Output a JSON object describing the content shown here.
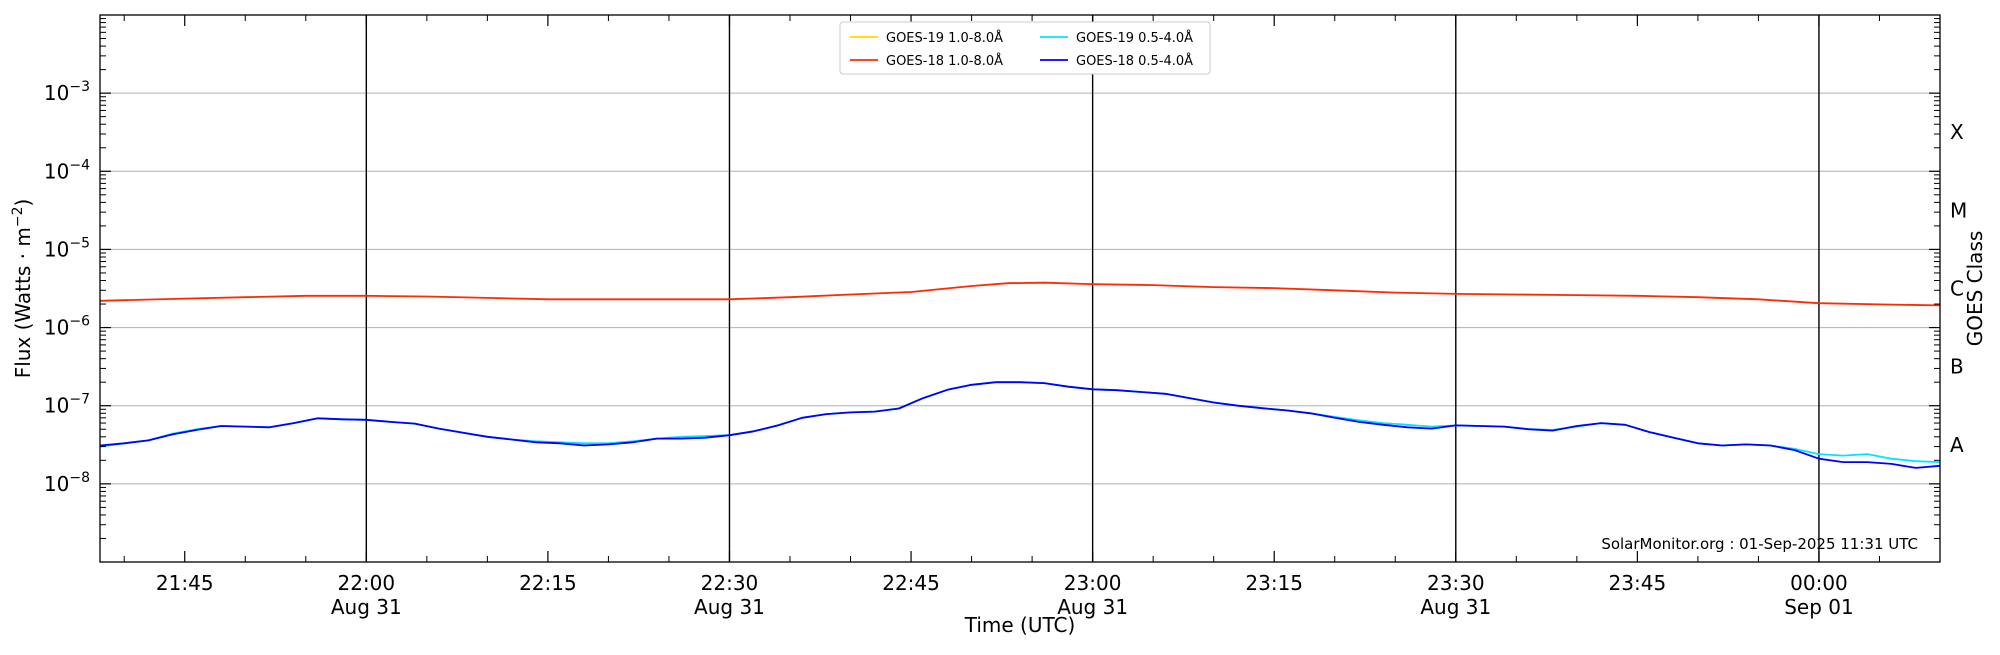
{
  "chart_data": {
    "type": "line",
    "title": "",
    "xlabel": "Time (UTC)",
    "ylabel": "Flux (Watts · m⁻²)",
    "y2label": "GOES Class",
    "yscale": "log",
    "ylim_exponent": [
      -9,
      -2
    ],
    "y_ticks": [
      {
        "exp": -8,
        "base": "10",
        "sup": "−8"
      },
      {
        "exp": -7,
        "base": "10",
        "sup": "−7"
      },
      {
        "exp": -6,
        "base": "10",
        "sup": "−6"
      },
      {
        "exp": -5,
        "base": "10",
        "sup": "−5"
      },
      {
        "exp": -4,
        "base": "10",
        "sup": "−4"
      },
      {
        "exp": -3,
        "base": "10",
        "sup": "−3"
      }
    ],
    "goes_classes": [
      {
        "label": "A",
        "exp": -7.5
      },
      {
        "label": "B",
        "exp": -6.5
      },
      {
        "label": "C",
        "exp": -5.5
      },
      {
        "label": "M",
        "exp": -4.5
      },
      {
        "label": "X",
        "exp": -3.5
      }
    ],
    "xlim": [
      "2025-08-31 21:38",
      "2025-09-01 00:10"
    ],
    "x_ticks": [
      {
        "time": "2025-08-31 21:45",
        "line1": "21:45",
        "line2": ""
      },
      {
        "time": "2025-08-31 22:00",
        "line1": "22:00",
        "line2": "Aug 31"
      },
      {
        "time": "2025-08-31 22:15",
        "line1": "22:15",
        "line2": ""
      },
      {
        "time": "2025-08-31 22:30",
        "line1": "22:30",
        "line2": "Aug 31"
      },
      {
        "time": "2025-08-31 22:45",
        "line1": "22:45",
        "line2": ""
      },
      {
        "time": "2025-08-31 23:00",
        "line1": "23:00",
        "line2": "Aug 31"
      },
      {
        "time": "2025-08-31 23:15",
        "line1": "23:15",
        "line2": ""
      },
      {
        "time": "2025-08-31 23:30",
        "line1": "23:30",
        "line2": "Aug 31"
      },
      {
        "time": "2025-08-31 23:45",
        "line1": "23:45",
        "line2": ""
      },
      {
        "time": "2025-09-01 00:00",
        "line1": "00:00",
        "line2": "Sep 01"
      }
    ],
    "vertical_lines": [
      "2025-08-31 22:00",
      "2025-08-31 22:30",
      "2025-08-31 23:00",
      "2025-08-31 23:30",
      "2025-09-01 00:00"
    ],
    "grid": true,
    "legend_position": "top-center",
    "legend": [
      {
        "name": "GOES-19 1.0-8.0Å",
        "color": "#ffd700"
      },
      {
        "name": "GOES-19 0.5-4.0Å",
        "color": "#00e5ff"
      },
      {
        "name": "GOES-18 1.0-8.0Å",
        "color": "#ff2a00"
      },
      {
        "name": "GOES-18 0.5-4.0Å",
        "color": "#0000ff"
      }
    ],
    "series": [
      {
        "name": "GOES-18 1.0-8.0Å",
        "color": "#ff2a00",
        "x": [
          "2025-08-31 21:38",
          "2025-08-31 21:45",
          "2025-08-31 21:50",
          "2025-08-31 21:55",
          "2025-08-31 22:00",
          "2025-08-31 22:05",
          "2025-08-31 22:10",
          "2025-08-31 22:15",
          "2025-08-31 22:20",
          "2025-08-31 22:25",
          "2025-08-31 22:30",
          "2025-08-31 22:35",
          "2025-08-31 22:40",
          "2025-08-31 22:45",
          "2025-08-31 22:50",
          "2025-08-31 22:53",
          "2025-08-31 22:56",
          "2025-08-31 23:00",
          "2025-08-31 23:05",
          "2025-08-31 23:10",
          "2025-08-31 23:15",
          "2025-08-31 23:20",
          "2025-08-31 23:25",
          "2025-08-31 23:30",
          "2025-08-31 23:35",
          "2025-08-31 23:40",
          "2025-08-31 23:45",
          "2025-08-31 23:50",
          "2025-08-31 23:55",
          "2025-09-01 00:00",
          "2025-09-01 00:05",
          "2025-09-01 00:10"
        ],
        "y": [
          2.2e-06,
          2.35e-06,
          2.45e-06,
          2.55e-06,
          2.55e-06,
          2.5e-06,
          2.4e-06,
          2.3e-06,
          2.3e-06,
          2.3e-06,
          2.3e-06,
          2.45e-06,
          2.65e-06,
          2.85e-06,
          3.4e-06,
          3.7e-06,
          3.75e-06,
          3.6e-06,
          3.5e-06,
          3.3e-06,
          3.2e-06,
          3e-06,
          2.8e-06,
          2.7e-06,
          2.65e-06,
          2.6e-06,
          2.55e-06,
          2.45e-06,
          2.3e-06,
          2.05e-06,
          1.98e-06,
          1.92e-06
        ]
      },
      {
        "name": "GOES-19 0.5-4.0Å",
        "color": "#00e5ff",
        "x": [
          "2025-08-31 21:38",
          "2025-08-31 21:40",
          "2025-08-31 21:42",
          "2025-08-31 21:44",
          "2025-08-31 21:46",
          "2025-08-31 21:48",
          "2025-08-31 21:50",
          "2025-08-31 21:52",
          "2025-08-31 21:54",
          "2025-08-31 21:56",
          "2025-08-31 21:58",
          "2025-08-31 22:00",
          "2025-08-31 22:02",
          "2025-08-31 22:04",
          "2025-08-31 22:06",
          "2025-08-31 22:08",
          "2025-08-31 22:10",
          "2025-08-31 22:12",
          "2025-08-31 22:14",
          "2025-08-31 22:16",
          "2025-08-31 22:18",
          "2025-08-31 22:20",
          "2025-08-31 22:22",
          "2025-08-31 22:24",
          "2025-08-31 22:26",
          "2025-08-31 22:28",
          "2025-08-31 22:30",
          "2025-08-31 22:32",
          "2025-08-31 22:34",
          "2025-08-31 22:36",
          "2025-08-31 22:38",
          "2025-08-31 22:40",
          "2025-08-31 22:42",
          "2025-08-31 22:44",
          "2025-08-31 22:46",
          "2025-08-31 22:48",
          "2025-08-31 22:50",
          "2025-08-31 22:52",
          "2025-08-31 22:54",
          "2025-08-31 22:56",
          "2025-08-31 22:58",
          "2025-08-31 23:00",
          "2025-08-31 23:02",
          "2025-08-31 23:04",
          "2025-08-31 23:06",
          "2025-08-31 23:08",
          "2025-08-31 23:10",
          "2025-08-31 23:12",
          "2025-08-31 23:14",
          "2025-08-31 23:16",
          "2025-08-31 23:18",
          "2025-08-31 23:20",
          "2025-08-31 23:22",
          "2025-08-31 23:24",
          "2025-08-31 23:26",
          "2025-08-31 23:28",
          "2025-08-31 23:30",
          "2025-08-31 23:32",
          "2025-08-31 23:34",
          "2025-08-31 23:36",
          "2025-08-31 23:38",
          "2025-08-31 23:40",
          "2025-08-31 23:42",
          "2025-08-31 23:44",
          "2025-08-31 23:46",
          "2025-08-31 23:48",
          "2025-08-31 23:50",
          "2025-08-31 23:52",
          "2025-08-31 23:54",
          "2025-08-31 23:56",
          "2025-08-31 23:58",
          "2025-09-01 00:00",
          "2025-09-01 00:02",
          "2025-09-01 00:04",
          "2025-09-01 00:06",
          "2025-09-01 00:08",
          "2025-09-01 00:10"
        ],
        "y": [
          3e-08,
          3.3e-08,
          3.6e-08,
          4.4e-08,
          5e-08,
          5.5e-08,
          5.4e-08,
          5.3e-08,
          6e-08,
          6.9e-08,
          6.7e-08,
          6.6e-08,
          6.2e-08,
          5.9e-08,
          5.1e-08,
          4.5e-08,
          4e-08,
          3.7e-08,
          3.5e-08,
          3.4e-08,
          3.3e-08,
          3.3e-08,
          3.5e-08,
          3.8e-08,
          4e-08,
          4.1e-08,
          4.2e-08,
          4.7e-08,
          5.6e-08,
          7e-08,
          7.8e-08,
          8.2e-08,
          8.4e-08,
          9.2e-08,
          1.25e-07,
          1.6e-07,
          1.85e-07,
          2e-07,
          2e-07,
          1.95e-07,
          1.75e-07,
          1.62e-07,
          1.58e-07,
          1.5e-07,
          1.42e-07,
          1.25e-07,
          1.1e-07,
          1e-07,
          9.3e-08,
          8.7e-08,
          8e-08,
          7.2e-08,
          6.5e-08,
          6e-08,
          5.7e-08,
          5.4e-08,
          5.6e-08,
          5.5e-08,
          5.4e-08,
          5e-08,
          4.9e-08,
          5.4e-08,
          6e-08,
          5.7e-08,
          4.6e-08,
          3.9e-08,
          3.3e-08,
          3.1e-08,
          3.2e-08,
          3.1e-08,
          2.8e-08,
          2.4e-08,
          2.3e-08,
          2.4e-08,
          2.1e-08,
          1.95e-08,
          1.9e-08
        ]
      },
      {
        "name": "GOES-18 0.5-4.0Å",
        "color": "#0000ff",
        "x": [
          "2025-08-31 21:38",
          "2025-08-31 21:40",
          "2025-08-31 21:42",
          "2025-08-31 21:44",
          "2025-08-31 21:46",
          "2025-08-31 21:48",
          "2025-08-31 21:50",
          "2025-08-31 21:52",
          "2025-08-31 21:54",
          "2025-08-31 21:56",
          "2025-08-31 21:58",
          "2025-08-31 22:00",
          "2025-08-31 22:02",
          "2025-08-31 22:04",
          "2025-08-31 22:06",
          "2025-08-31 22:08",
          "2025-08-31 22:10",
          "2025-08-31 22:12",
          "2025-08-31 22:14",
          "2025-08-31 22:16",
          "2025-08-31 22:18",
          "2025-08-31 22:20",
          "2025-08-31 22:22",
          "2025-08-31 22:24",
          "2025-08-31 22:26",
          "2025-08-31 22:28",
          "2025-08-31 22:30",
          "2025-08-31 22:32",
          "2025-08-31 22:34",
          "2025-08-31 22:36",
          "2025-08-31 22:38",
          "2025-08-31 22:40",
          "2025-08-31 22:42",
          "2025-08-31 22:44",
          "2025-08-31 22:46",
          "2025-08-31 22:48",
          "2025-08-31 22:50",
          "2025-08-31 22:52",
          "2025-08-31 22:54",
          "2025-08-31 22:56",
          "2025-08-31 22:58",
          "2025-08-31 23:00",
          "2025-08-31 23:02",
          "2025-08-31 23:04",
          "2025-08-31 23:06",
          "2025-08-31 23:08",
          "2025-08-31 23:10",
          "2025-08-31 23:12",
          "2025-08-31 23:14",
          "2025-08-31 23:16",
          "2025-08-31 23:18",
          "2025-08-31 23:20",
          "2025-08-31 23:22",
          "2025-08-31 23:24",
          "2025-08-31 23:26",
          "2025-08-31 23:28",
          "2025-08-31 23:30",
          "2025-08-31 23:32",
          "2025-08-31 23:34",
          "2025-08-31 23:36",
          "2025-08-31 23:38",
          "2025-08-31 23:40",
          "2025-08-31 23:42",
          "2025-08-31 23:44",
          "2025-08-31 23:46",
          "2025-08-31 23:48",
          "2025-08-31 23:50",
          "2025-08-31 23:52",
          "2025-08-31 23:54",
          "2025-08-31 23:56",
          "2025-08-31 23:58",
          "2025-09-01 00:00",
          "2025-09-01 00:02",
          "2025-09-01 00:04",
          "2025-09-01 00:06",
          "2025-09-01 00:08",
          "2025-09-01 00:10"
        ],
        "y": [
          3.1e-08,
          3.3e-08,
          3.6e-08,
          4.3e-08,
          4.9e-08,
          5.5e-08,
          5.4e-08,
          5.3e-08,
          6e-08,
          6.9e-08,
          6.7e-08,
          6.6e-08,
          6.2e-08,
          5.9e-08,
          5.1e-08,
          4.5e-08,
          4e-08,
          3.7e-08,
          3.4e-08,
          3.3e-08,
          3.1e-08,
          3.2e-08,
          3.4e-08,
          3.8e-08,
          3.8e-08,
          3.9e-08,
          4.2e-08,
          4.7e-08,
          5.6e-08,
          7e-08,
          7.8e-08,
          8.2e-08,
          8.4e-08,
          9.2e-08,
          1.25e-07,
          1.6e-07,
          1.85e-07,
          2e-07,
          2e-07,
          1.95e-07,
          1.75e-07,
          1.62e-07,
          1.58e-07,
          1.5e-07,
          1.42e-07,
          1.25e-07,
          1.1e-07,
          1e-07,
          9.3e-08,
          8.7e-08,
          8e-08,
          7e-08,
          6.2e-08,
          5.7e-08,
          5.3e-08,
          5.1e-08,
          5.6e-08,
          5.5e-08,
          5.4e-08,
          5e-08,
          4.8e-08,
          5.5e-08,
          6e-08,
          5.7e-08,
          4.6e-08,
          3.9e-08,
          3.3e-08,
          3.1e-08,
          3.2e-08,
          3.1e-08,
          2.7e-08,
          2.1e-08,
          1.9e-08,
          1.9e-08,
          1.8e-08,
          1.6e-08,
          1.7e-08
        ]
      }
    ]
  },
  "watermark": "SolarMonitor.org : 01-Sep-2025 11:31 UTC"
}
